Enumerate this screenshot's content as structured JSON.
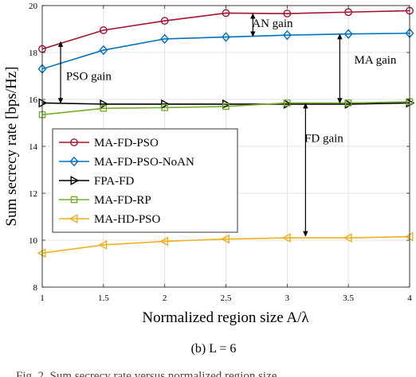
{
  "chart_data": {
    "type": "line",
    "title": "",
    "xlabel": "Normalized region size A/λ",
    "ylabel": "Sum secrecy rate [bps/Hz]",
    "xlim": [
      1,
      4
    ],
    "ylim": [
      8,
      20
    ],
    "xticks": [
      "1",
      "1.5",
      "2",
      "2.5",
      "3",
      "3.5",
      "4"
    ],
    "yticks": [
      "8",
      "10",
      "12",
      "14",
      "16",
      "18",
      "20"
    ],
    "grid": true,
    "legend_position": "middle-left",
    "x": [
      1,
      1.5,
      2,
      2.5,
      3,
      3.5,
      4
    ],
    "series": [
      {
        "name": "MA-FD-PSO",
        "color": "#a2142f",
        "marker": "circle",
        "values": [
          18.15,
          18.95,
          19.35,
          19.68,
          19.66,
          19.72,
          19.78
        ]
      },
      {
        "name": "MA-FD-PSO-NoAN",
        "color": "#0072bd",
        "marker": "diamond",
        "values": [
          17.3,
          18.1,
          18.58,
          18.66,
          18.74,
          18.79,
          18.82
        ]
      },
      {
        "name": "FPA-FD",
        "color": "#000000",
        "marker": "triangle-right",
        "values": [
          15.85,
          15.8,
          15.8,
          15.8,
          15.8,
          15.8,
          15.85
        ]
      },
      {
        "name": "MA-FD-RP",
        "color": "#77ac30",
        "marker": "square",
        "values": [
          15.35,
          15.62,
          15.65,
          15.7,
          15.85,
          15.85,
          15.9
        ]
      },
      {
        "name": "MA-HD-PSO",
        "color": "#edb120",
        "marker": "triangle-left",
        "values": [
          9.45,
          9.8,
          9.95,
          10.05,
          10.1,
          10.1,
          10.15
        ]
      }
    ],
    "annotations": [
      {
        "text": "AN gain",
        "x": 2.72,
        "y_from": 18.66,
        "y_to": 19.68,
        "text_x": 2.88,
        "text_y": 19.25
      },
      {
        "text": "PSO gain",
        "x": 1.15,
        "y_from": 15.82,
        "y_to": 18.48,
        "text_x": 1.38,
        "text_y": 17.0
      },
      {
        "text": "MA gain",
        "x": 3.43,
        "y_from": 15.82,
        "y_to": 18.8,
        "text_x": 3.72,
        "text_y": 17.7
      },
      {
        "text": "FD gain",
        "x": 3.15,
        "y_from": 10.15,
        "y_to": 15.85,
        "text_x": 3.3,
        "text_y": 14.35
      }
    ]
  },
  "caption": {
    "subfigure": "(b) L = 6",
    "figure_fragment": "Fig. 2.   Sum secrecy rate versus normalized region size"
  }
}
